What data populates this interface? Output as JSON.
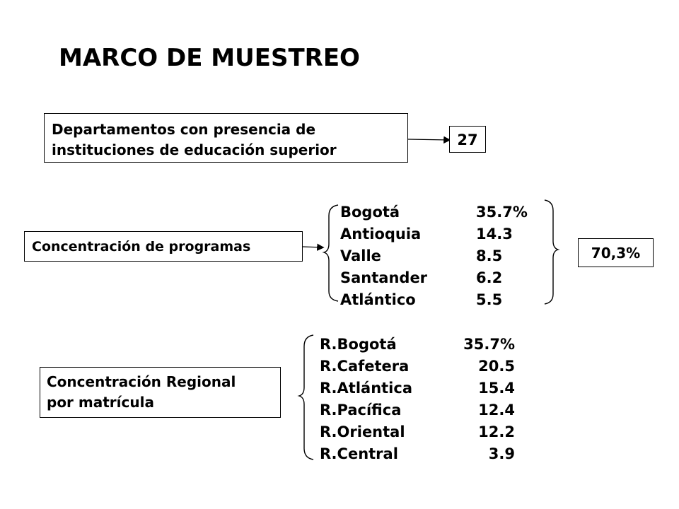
{
  "title": "MARCO DE MUESTREO",
  "departamentos": {
    "label_line1": "Departamentos con presencia de",
    "label_line2": "instituciones de educación superior",
    "value": "27"
  },
  "programas": {
    "label": "Concentración de programas",
    "rows": [
      {
        "name": "Bogotá",
        "value": "35.7%"
      },
      {
        "name": "Antioquia",
        "value": "14.3"
      },
      {
        "name": "Valle",
        "value": "8.5"
      },
      {
        "name": "Santander",
        "value": "6.2"
      },
      {
        "name": "Atlántico",
        "value": "5.5"
      }
    ],
    "total": "70,3%"
  },
  "regional": {
    "label_line1": "Concentración Regional",
    "label_line2": "por matrícula",
    "rows": [
      {
        "name": "R.Bogotá",
        "value": "35.7%"
      },
      {
        "name": "R.Cafetera",
        "value": "20.5"
      },
      {
        "name": "R.Atlántica",
        "value": "15.4"
      },
      {
        "name": "R.Pacífica",
        "value": "12.4"
      },
      {
        "name": "R.Oriental",
        "value": "12.2"
      },
      {
        "name": "R.Central",
        "value": "3.9"
      }
    ]
  }
}
